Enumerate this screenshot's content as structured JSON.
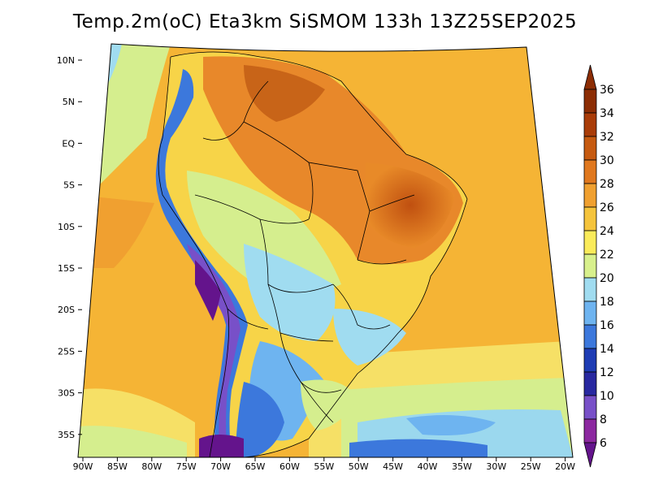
{
  "title": "Temp.2m(oC) Eta3km SiSMOM 133h 13Z25SEP2025",
  "lat_labels": [
    "10N",
    "5N",
    "EQ",
    "5S",
    "10S",
    "15S",
    "20S",
    "25S",
    "30S",
    "35S"
  ],
  "lon_labels": [
    "90W",
    "85W",
    "80W",
    "75W",
    "70W",
    "65W",
    "60W",
    "55W",
    "50W",
    "45W",
    "40W",
    "35W",
    "30W",
    "25W",
    "20W"
  ],
  "colorbar": {
    "labels": [
      "36",
      "34",
      "32",
      "30",
      "28",
      "26",
      "24",
      "22",
      "20",
      "18",
      "16",
      "14",
      "12",
      "10",
      "8",
      "6"
    ],
    "colors": [
      "#8c2d04",
      "#a93c08",
      "#c65a10",
      "#e0781e",
      "#f0a030",
      "#f5c43c",
      "#faeb5a",
      "#d8f08c",
      "#a0dcf0",
      "#6eb4f0",
      "#3c78dc",
      "#1e3cb4",
      "#2828a0",
      "#7850c8",
      "#8c28a0",
      "#64148c"
    ]
  }
}
